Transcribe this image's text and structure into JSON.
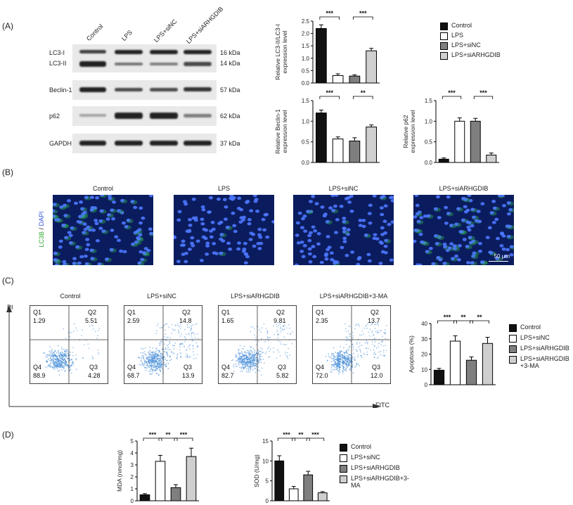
{
  "panels": {
    "A": "(A)",
    "B": "(B)",
    "C": "(C)",
    "D": "(D)"
  },
  "groups4": [
    "Control",
    "LPS",
    "LPS+siNC",
    "LPS+siARHGDIB"
  ],
  "blot": {
    "lanes": [
      "Control",
      "LPS",
      "LPS+siNC",
      "LPS+siARHGDIB"
    ],
    "proteins": [
      "LC3-I",
      "LC3-II",
      "Beclin-1",
      "p62",
      "GAPDH"
    ],
    "sizes": [
      "16 kDa",
      "14 kDa",
      "57 kDa",
      "62 kDa",
      "37 kDa"
    ]
  },
  "legendA": [
    "Control",
    "LPS",
    "LPS+siNC",
    "LPS+siARHGDIB"
  ],
  "colors": {
    "black": "#111111",
    "white": "#ffffff",
    "darkgray": "#7f7f7f",
    "lightgray": "#cfcfcf",
    "blot_bg": "#e9e9e9",
    "micro_bg": "#0b1c5e",
    "flow": "#4a90d9"
  },
  "micro": {
    "titles": [
      "Control",
      "LPS",
      "LPS+siNC",
      "LPS+siARHGDIB"
    ],
    "ylabel_green": "LC3B",
    "ylabel_sep": " / ",
    "ylabel_blue": "DAPI",
    "scalebar": "50 μm"
  },
  "flow": {
    "titles": [
      "Control",
      "LPS+siNC",
      "LPS+siARHGDIB",
      "LPS+siARHGDIB+3-MA"
    ],
    "q1": [
      "1.29",
      "2.59",
      "1.65",
      "2.35"
    ],
    "q2": [
      "5.51",
      "14.8",
      "9.81",
      "13.7"
    ],
    "q3": [
      "4.28",
      "13.9",
      "5.82",
      "12.0"
    ],
    "q4": [
      "88.9",
      "68.7",
      "82.7",
      "72.0"
    ],
    "qlabels": [
      "Q1",
      "Q2",
      "Q3",
      "Q4"
    ],
    "xaxis": "FITC",
    "yaxis": "PI"
  },
  "legendC": [
    "Control",
    "LPS+siNC",
    "LPS+siARHGDIB",
    "LPS+siARHGDIB\n+3-MA"
  ],
  "legendD": [
    "Control",
    "LPS+siNC",
    "LPS+siARHGDIB",
    "LPS+siARHGDIB+3-\nMA"
  ],
  "chart_data": [
    {
      "id": "lc3",
      "type": "bar",
      "categories": [
        "Control",
        "LPS",
        "LPS+siNC",
        "LPS+siARHGDIB"
      ],
      "values": [
        2.2,
        0.3,
        0.28,
        1.3
      ],
      "errors": [
        0.15,
        0.07,
        0.05,
        0.1
      ],
      "ylabel": "Relative LC3-II/LC3-I\nexpression level",
      "ylim": [
        0,
        2.5
      ],
      "yticks": [
        "0.0",
        "0.5",
        "1.0",
        "1.5",
        "2.0",
        "2.5"
      ],
      "sig": [
        [
          "***",
          0,
          1
        ],
        [
          "***",
          2,
          3
        ]
      ]
    },
    {
      "id": "beclin",
      "type": "bar",
      "categories": [
        "Control",
        "LPS",
        "LPS+siNC",
        "LPS+siARHGDIB"
      ],
      "values": [
        1.2,
        0.57,
        0.52,
        0.86
      ],
      "errors": [
        0.07,
        0.05,
        0.08,
        0.05
      ],
      "ylabel": "Relative Beclin-1\nexpression level",
      "ylim": [
        0,
        1.5
      ],
      "yticks": [
        "0.0",
        "0.5",
        "1.0",
        "1.5"
      ],
      "sig": [
        [
          "***",
          0,
          1
        ],
        [
          "**",
          2,
          3
        ]
      ]
    },
    {
      "id": "p62",
      "type": "bar",
      "categories": [
        "Control",
        "LPS",
        "LPS+siNC",
        "LPS+siARHGDIB"
      ],
      "values": [
        0.08,
        1.0,
        1.0,
        0.18
      ],
      "errors": [
        0.03,
        0.08,
        0.07,
        0.05
      ],
      "ylabel": "Relative p62\nexpression level",
      "ylim": [
        0,
        1.5
      ],
      "yticks": [
        "0.0",
        "0.5",
        "1.0",
        "1.5"
      ],
      "sig": [
        [
          "***",
          0,
          1
        ],
        [
          "***",
          2,
          3
        ]
      ]
    },
    {
      "id": "apop",
      "type": "bar",
      "categories": [
        "Control",
        "LPS+siNC",
        "LPS+siARHGDIB",
        "LPS+siARHGDIB+3-MA"
      ],
      "values": [
        9.5,
        28.5,
        16,
        27
      ],
      "errors": [
        1.2,
        3.5,
        2.2,
        4
      ],
      "ylabel": "Apoptosis (%)",
      "ylim": [
        0,
        40
      ],
      "yticks": [
        "0",
        "10",
        "20",
        "30",
        "40"
      ],
      "sig": [
        [
          "***",
          0,
          1
        ],
        [
          "**",
          1,
          2
        ],
        [
          "**",
          2,
          3
        ]
      ]
    },
    {
      "id": "mda",
      "type": "bar",
      "categories": [
        "Control",
        "LPS+siNC",
        "LPS+siARHGDIB",
        "LPS+siARHGDIB+3-MA"
      ],
      "values": [
        0.5,
        3.3,
        1.1,
        3.7
      ],
      "errors": [
        0.1,
        0.5,
        0.25,
        0.7
      ],
      "ylabel": "MDA (nmol/mg)",
      "ylim": [
        0,
        5
      ],
      "yticks": [
        "0",
        "1",
        "2",
        "3",
        "4",
        "5"
      ],
      "sig": [
        [
          "***",
          0,
          1
        ],
        [
          "**",
          1,
          2
        ],
        [
          "***",
          2,
          3
        ]
      ]
    },
    {
      "id": "sod",
      "type": "bar",
      "categories": [
        "Control",
        "LPS+siNC",
        "LPS+siARHGDIB",
        "LPS+siARHGDIB+3-MA"
      ],
      "values": [
        10,
        3,
        6.5,
        2
      ],
      "errors": [
        1.3,
        0.6,
        0.9,
        0.3
      ],
      "ylabel": "SOD (U/mg)",
      "ylim": [
        0,
        15
      ],
      "yticks": [
        "0",
        "5",
        "10",
        "15"
      ],
      "sig": [
        [
          "***",
          0,
          1
        ],
        [
          "**",
          1,
          2
        ],
        [
          "***",
          2,
          3
        ]
      ]
    }
  ]
}
